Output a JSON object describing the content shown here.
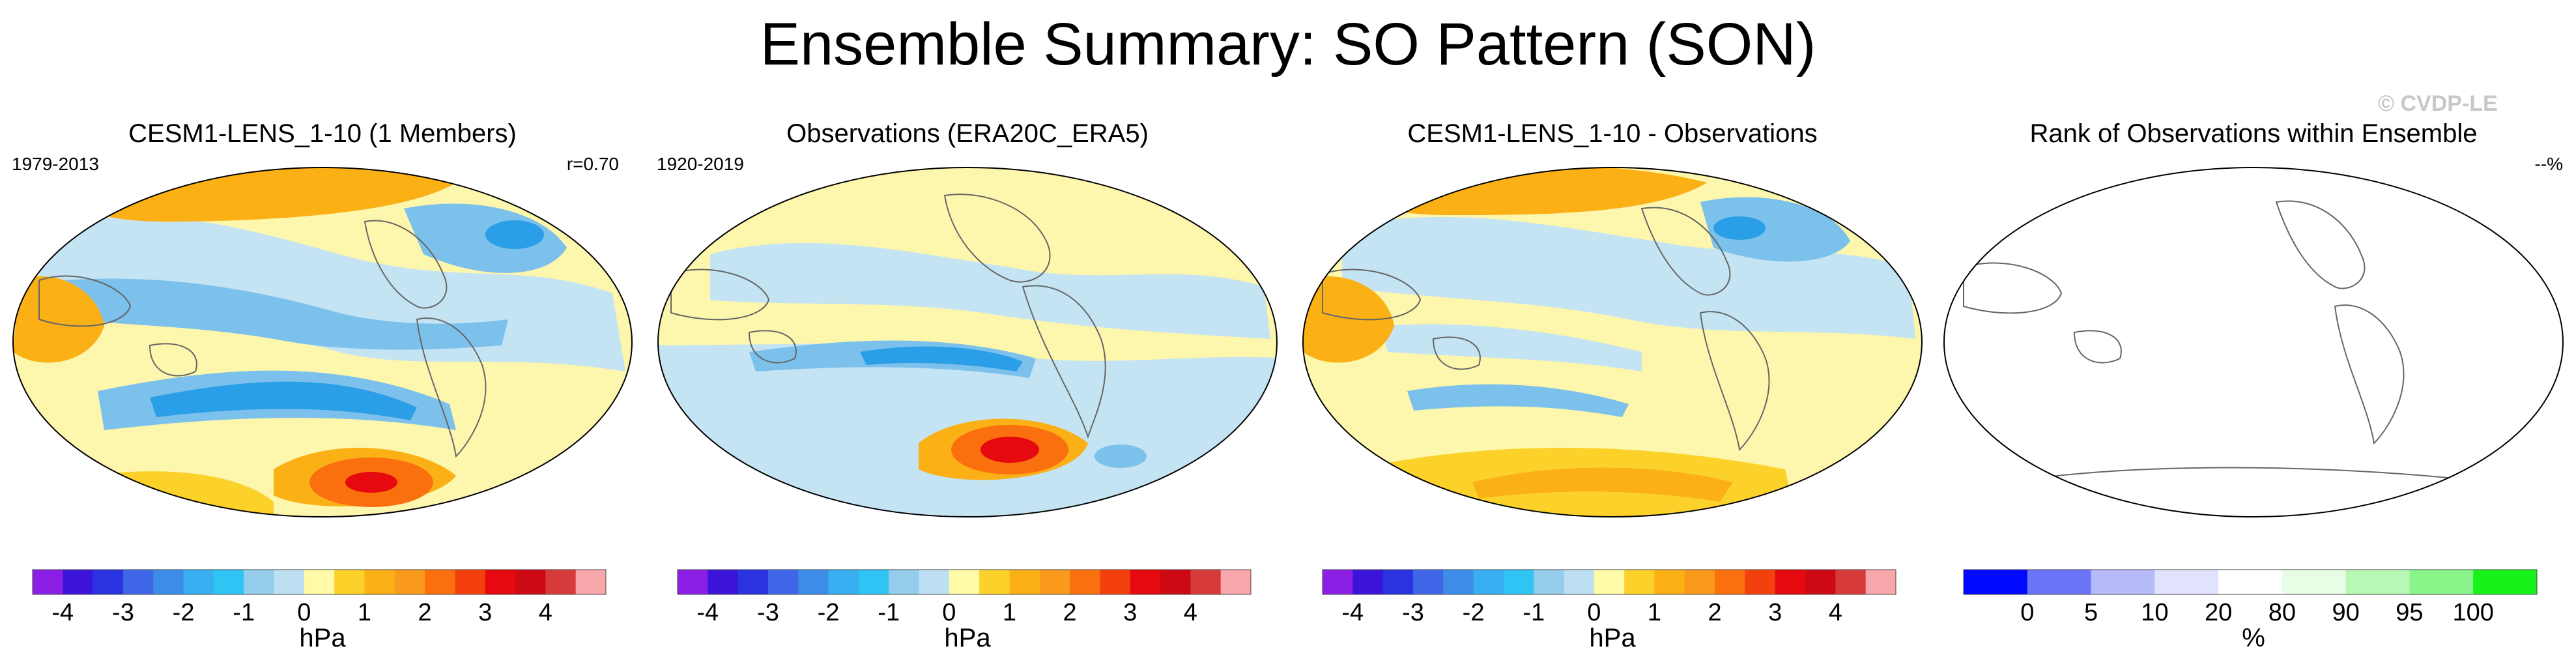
{
  "header": {
    "title": "Ensemble Summary: SO Pattern (SON)",
    "watermark": "© CVDP-LE"
  },
  "palettes": {
    "pressure": [
      "#8c1fe6",
      "#3c14d9",
      "#2a33e0",
      "#3f66e6",
      "#3d8de8",
      "#38aff0",
      "#30c4f5",
      "#94cdeb",
      "#bcdff2",
      "#fff9a8",
      "#fcd22a",
      "#fbb015",
      "#f99a1c",
      "#fa6f0e",
      "#f4400c",
      "#e6090f",
      "#cd0a14",
      "#d63a3a",
      "#f7a6a9"
    ],
    "rank": [
      "#0008ff",
      "#6c74f7",
      "#b6baf9",
      "#e1e3fd",
      "#ffffff",
      "#e7fde6",
      "#b7f8b4",
      "#88f48a",
      "#18f21b"
    ],
    "map_colors": {
      "deep_blue": "#2a9ee6",
      "mid_blue": "#7cc1ec",
      "light_blue": "#c4e3f3",
      "pale_yellow": "#fdf6ad",
      "yellow": "#fcd22a",
      "orange": "#fbb015",
      "deep_orange": "#fa6f0e",
      "red": "#e6090f",
      "dark_red": "#cd0a14",
      "coast": "#666666"
    }
  },
  "chart_data": [
    {
      "type": "heatmap",
      "title": "CESM1-LENS_1-10 (1 Members)",
      "period": "1979-2013",
      "corr_label": "r=0.70",
      "colorbar": {
        "boundaries": [
          -4.5,
          -4,
          -3.5,
          -3,
          -2.5,
          -2,
          -1.5,
          -1,
          -0.5,
          0,
          0.5,
          1,
          1.5,
          2,
          2.5,
          3,
          3.5,
          4,
          4.5
        ],
        "tick_labels": [
          "-4",
          "-3",
          "-2",
          "-1",
          "0",
          "1",
          "2",
          "3",
          "4"
        ],
        "units": "hPa"
      }
    },
    {
      "type": "heatmap",
      "title": "Observations (ERA20C_ERA5)",
      "period": "1920-2019",
      "colorbar": {
        "boundaries": [
          -4.5,
          -4,
          -3.5,
          -3,
          -2.5,
          -2,
          -1.5,
          -1,
          -0.5,
          0,
          0.5,
          1,
          1.5,
          2,
          2.5,
          3,
          3.5,
          4,
          4.5
        ],
        "tick_labels": [
          "-4",
          "-3",
          "-2",
          "-1",
          "0",
          "1",
          "2",
          "3",
          "4"
        ],
        "units": "hPa"
      }
    },
    {
      "type": "heatmap",
      "title": "CESM1-LENS_1-10 - Observations",
      "colorbar": {
        "boundaries": [
          -4.5,
          -4,
          -3.5,
          -3,
          -2.5,
          -2,
          -1.5,
          -1,
          -0.5,
          0,
          0.5,
          1,
          1.5,
          2,
          2.5,
          3,
          3.5,
          4,
          4.5
        ],
        "tick_labels": [
          "-4",
          "-3",
          "-2",
          "-1",
          "0",
          "1",
          "2",
          "3",
          "4"
        ],
        "units": "hPa"
      }
    },
    {
      "type": "heatmap",
      "title": "Rank of Observations within Ensemble",
      "corr_label": "--%",
      "colorbar": {
        "tick_labels": [
          "0",
          "5",
          "10",
          "20",
          "80",
          "90",
          "95",
          "100"
        ],
        "units": "%"
      }
    }
  ]
}
